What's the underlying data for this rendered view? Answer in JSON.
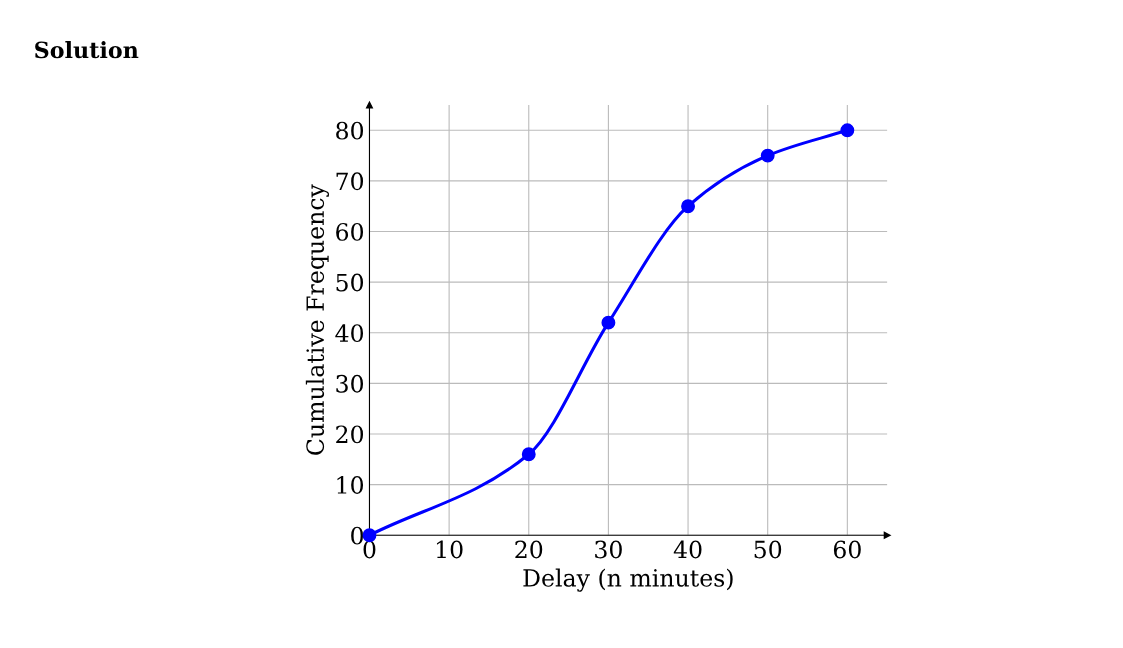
{
  "chart_data": {
    "type": "line",
    "title": "Solution",
    "xlabel": "Delay (n minutes)",
    "ylabel": "Cumulative Frequency",
    "x": [
      0,
      20,
      30,
      40,
      50,
      60
    ],
    "series": [
      {
        "color": "#0000ff",
        "values": [
          0,
          16,
          42,
          65,
          75,
          80
        ]
      }
    ],
    "xlim": [
      0,
      65
    ],
    "ylim": [
      0,
      85
    ],
    "xticks": [
      0,
      10,
      20,
      30,
      40,
      50,
      60
    ],
    "yticks": [
      0,
      10,
      20,
      30,
      40,
      50,
      60,
      70,
      80
    ],
    "grid": true,
    "marker": "circle",
    "line_style": "solid"
  }
}
